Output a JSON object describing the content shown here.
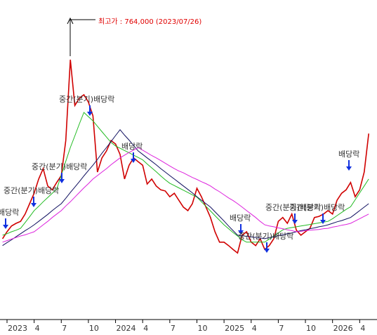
{
  "chart_data": {
    "type": "line",
    "categories": [
      null,
      "2023",
      null,
      null,
      null,
      null,
      null,
      "4",
      null,
      null,
      null,
      null,
      null,
      "7",
      null,
      null,
      null,
      null,
      null,
      "10",
      null,
      null,
      null,
      null,
      null,
      "2024",
      null,
      null,
      null,
      null,
      null,
      "4",
      null,
      null,
      null,
      null,
      null,
      "7",
      null,
      null,
      null,
      null,
      null,
      "10",
      null,
      null,
      null,
      null,
      null,
      "2025",
      null,
      null,
      null,
      null,
      null,
      "4",
      null,
      null,
      null,
      null,
      null,
      "7",
      null,
      null,
      null,
      null,
      null,
      "10",
      null,
      null,
      null,
      null,
      null,
      "2026",
      null,
      null,
      null,
      null,
      null,
      "4",
      null,
      null
    ],
    "ylim": [
      80000,
      910000
    ],
    "high": 764000,
    "annotations": [
      "최고가 : 764,000 (2023/07/26)",
      "배당락",
      "중간(분기)배당락",
      "중간(분기)배당락",
      "중간(분기)배당락",
      "배당락",
      "배당락",
      "중간(분기)배당락",
      "중간(분기)배당락",
      "중간(분기)배당락",
      "배당락"
    ],
    "annotation_color": "#e00000",
    "arrow_color": "#1030e0",
    "series": [
      {
        "color": "#d00000",
        "values": [
          290000,
          308000,
          323000,
          330000,
          335000,
          354000,
          381000,
          408000,
          445000,
          472000,
          427000,
          417000,
          436000,
          454000,
          545000,
          755000,
          636000,
          655000,
          664000,
          645000,
          609000,
          463000,
          500000,
          518000,
          545000,
          536000,
          509000,
          445000,
          481000,
          500000,
          490000,
          481000,
          432000,
          445000,
          427000,
          417000,
          414000,
          399000,
          408000,
          390000,
          372000,
          363000,
          381000,
          421000,
          399000,
          372000,
          345000,
          308000,
          281000,
          281000,
          272000,
          262000,
          253000,
          299000,
          308000,
          281000,
          272000,
          290000,
          262000,
          272000,
          290000,
          335000,
          345000,
          330000,
          354000,
          312000,
          299000,
          308000,
          317000,
          345000,
          348000,
          354000,
          363000,
          354000,
          390000,
          408000,
          417000,
          436000,
          399000,
          417000,
          463000,
          563000
        ]
      },
      {
        "color": "#22bb22",
        "values": [
          299000,
          303000,
          308000,
          312000,
          317000,
          332000,
          347000,
          363000,
          374000,
          386000,
          397000,
          408000,
          419000,
          455000,
          491000,
          527000,
          557000,
          588000,
          618000,
          607000,
          596000,
          582000,
          568000,
          554000,
          540000,
          531000,
          525000,
          519000,
          513000,
          507000,
          501000,
          495000,
          484000,
          474000,
          464000,
          453000,
          443000,
          434000,
          428000,
          422000,
          416000,
          410000,
          404000,
          398000,
          386000,
          374000,
          362000,
          350000,
          338000,
          326000,
          316000,
          306000,
          297000,
          287000,
          281000,
          281000,
          281000,
          281000,
          281000,
          289000,
          297000,
          305000,
          313000,
          317000,
          319000,
          321000,
          323000,
          325000,
          327000,
          329000,
          331000,
          333000,
          335000,
          342000,
          350000,
          358000,
          366000,
          373000,
          391000,
          409000,
          427000,
          445000
        ]
      },
      {
        "color": "#101060",
        "values": [
          272000,
          280000,
          287000,
          295000,
          303000,
          311000,
          318000,
          326000,
          335000,
          344000,
          353000,
          363000,
          372000,
          381000,
          395000,
          410000,
          424000,
          438000,
          453000,
          467000,
          481000,
          496000,
          512000,
          527000,
          542000,
          558000,
          573000,
          559000,
          546000,
          532000,
          518000,
          509000,
          500000,
          491000,
          482000,
          472000,
          463000,
          454000,
          445000,
          436000,
          427000,
          418000,
          409000,
          399000,
          390000,
          381000,
          372000,
          360000,
          348000,
          336000,
          323000,
          311000,
          299000,
          298000,
          296000,
          295000,
          293000,
          292000,
          290000,
          293000,
          295000,
          298000,
          300000,
          303000,
          305000,
          308000,
          311000,
          313000,
          316000,
          318000,
          321000,
          323000,
          326000,
          330000,
          334000,
          337000,
          341000,
          345000,
          354000,
          363000,
          372000,
          381000
        ]
      },
      {
        "color": "#dd22dd",
        "values": [
          281000,
          285000,
          289000,
          293000,
          297000,
          300000,
          304000,
          308000,
          317000,
          326000,
          335000,
          345000,
          354000,
          363000,
          375000,
          386000,
          398000,
          410000,
          422000,
          433000,
          445000,
          454000,
          463000,
          472000,
          482000,
          491000,
          500000,
          507000,
          514000,
          520000,
          527000,
          520000,
          513000,
          506000,
          500000,
          493000,
          486000,
          479000,
          472000,
          466000,
          461000,
          455000,
          449000,
          444000,
          438000,
          433000,
          427000,
          419000,
          412000,
          404000,
          396000,
          389000,
          381000,
          372000,
          363000,
          354000,
          345000,
          335000,
          326000,
          323000,
          321000,
          318000,
          316000,
          313000,
          311000,
          308000,
          309000,
          311000,
          312000,
          313000,
          314000,
          316000,
          317000,
          320000,
          322000,
          325000,
          327000,
          330000,
          336000,
          342000,
          348000,
          354000
        ]
      }
    ]
  }
}
